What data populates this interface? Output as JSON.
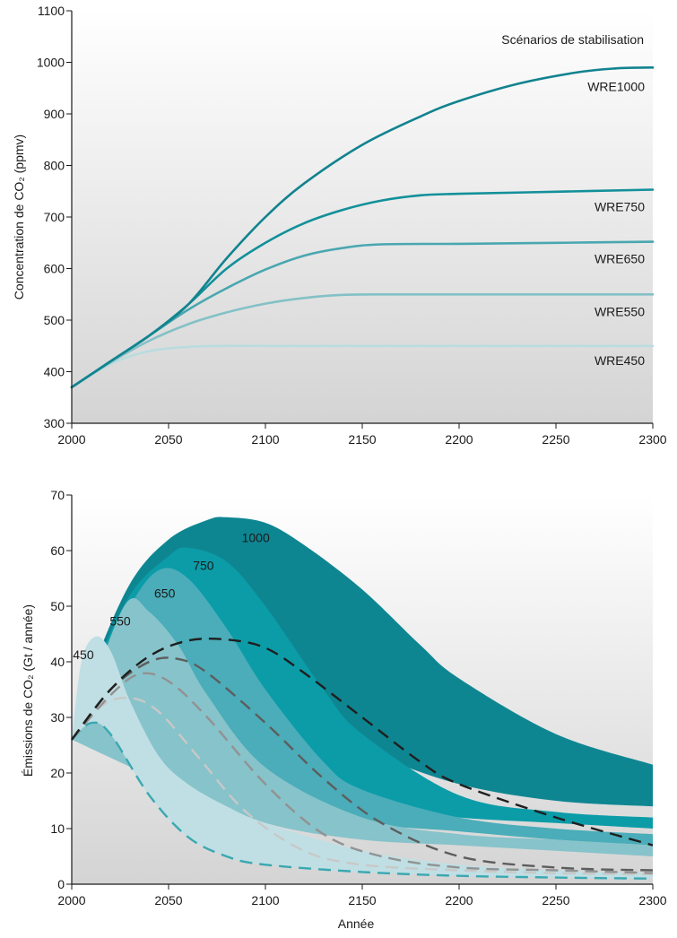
{
  "chart_data": [
    {
      "type": "line",
      "ylabel": "Concentration de CO₂ (ppmv)",
      "xlabel": "",
      "legend_title": "Scénarios de stabilisation",
      "xlim": [
        2000,
        2300
      ],
      "ylim": [
        300,
        1100
      ],
      "x_ticks": [
        "2000",
        "2050",
        "2100",
        "2150",
        "2200",
        "2250",
        "2300"
      ],
      "y_ticks": [
        "300",
        "400",
        "500",
        "600",
        "700",
        "800",
        "900",
        "1000",
        "1100"
      ],
      "colors": {
        "WRE1000": "#12838f",
        "WRE750": "#12909a",
        "WRE650": "#49a7b0",
        "WRE550": "#83c1c6",
        "WRE450": "#b9dcdf"
      },
      "series": [
        {
          "name": "WRE1000",
          "x": [
            2000,
            2020,
            2040,
            2060,
            2080,
            2100,
            2120,
            2150,
            2180,
            2200,
            2230,
            2260,
            2280,
            2300
          ],
          "y": [
            370,
            420,
            470,
            530,
            620,
            700,
            765,
            840,
            895,
            925,
            958,
            980,
            988,
            990
          ]
        },
        {
          "name": "WRE750",
          "x": [
            2000,
            2020,
            2040,
            2060,
            2080,
            2100,
            2120,
            2140,
            2160,
            2180,
            2200,
            2250,
            2300
          ],
          "y": [
            370,
            420,
            470,
            530,
            600,
            650,
            688,
            714,
            732,
            742,
            745,
            749,
            753
          ]
        },
        {
          "name": "WRE650",
          "x": [
            2000,
            2020,
            2040,
            2060,
            2080,
            2100,
            2120,
            2140,
            2160,
            2200,
            2250,
            2300
          ],
          "y": [
            370,
            420,
            470,
            520,
            562,
            598,
            625,
            640,
            647,
            648,
            650,
            652
          ]
        },
        {
          "name": "WRE550",
          "x": [
            2000,
            2020,
            2040,
            2060,
            2080,
            2100,
            2120,
            2140,
            2160,
            2200,
            2250,
            2300
          ],
          "y": [
            370,
            418,
            460,
            492,
            515,
            532,
            543,
            549,
            550,
            550,
            550,
            550
          ]
        },
        {
          "name": "WRE450",
          "x": [
            2000,
            2020,
            2040,
            2060,
            2080,
            2100,
            2150,
            2200,
            2250,
            2300
          ],
          "y": [
            370,
            415,
            440,
            448,
            450,
            450,
            450,
            450,
            450,
            450
          ]
        }
      ]
    },
    {
      "type": "area",
      "ylabel": "Émissions de CO₂ (Gt / année)",
      "xlabel": "Année",
      "xlim": [
        2000,
        2300
      ],
      "ylim": [
        0,
        70
      ],
      "x_ticks": [
        "2000",
        "2050",
        "2100",
        "2150",
        "2200",
        "2250",
        "2300"
      ],
      "y_ticks": [
        "0",
        "10",
        "20",
        "30",
        "40",
        "50",
        "60",
        "70"
      ],
      "bands": [
        {
          "name": "1000",
          "color": "#0e8692",
          "upper": {
            "x": [
              2000,
              2010,
              2030,
              2050,
              2070,
              2080,
              2100,
              2120,
              2150,
              2180,
              2200,
              2250,
              2300
            ],
            "y": [
              26,
              38,
              54,
              62,
              65.5,
              66,
              65,
              61,
              53,
              43,
              37,
              27,
              21.5
            ]
          },
          "lower": {
            "x": [
              2000,
              2100,
              2150,
              2200,
              2250,
              2300
            ],
            "y": [
              26,
              30,
              24,
              18,
              15,
              14
            ]
          }
        },
        {
          "name": "750",
          "color": "#0b9ca8",
          "upper": {
            "x": [
              2000,
              2010,
              2030,
              2050,
              2060,
              2080,
              2100,
              2130,
              2150,
              2200,
              2250,
              2300
            ],
            "y": [
              26,
              37,
              52,
              59,
              60.5,
              58,
              50,
              35,
              27,
              16,
              13,
              12
            ]
          },
          "lower": {
            "x": [
              2000,
              2050,
              2100,
              2150,
              2200,
              2250,
              2300
            ],
            "y": [
              26,
              25,
              18,
              14,
              12,
              11,
              10
            ]
          }
        },
        {
          "name": "650",
          "color": "#4aadb9",
          "upper": {
            "x": [
              2000,
              2010,
              2030,
              2045,
              2060,
              2080,
              2100,
              2130,
              2150,
              2200,
              2250,
              2300
            ],
            "y": [
              26,
              36,
              50,
              56.5,
              55,
              46,
              35,
              22,
              17,
              12,
              10,
              9
            ]
          },
          "lower": {
            "x": [
              2000,
              2050,
              2100,
              2150,
              2200,
              2250,
              2300
            ],
            "y": [
              26,
              22,
              15,
              11,
              9.5,
              8,
              7
            ]
          }
        },
        {
          "name": "550",
          "color": "#87c3ca",
          "upper": {
            "x": [
              2000,
              2010,
              2028,
              2040,
              2055,
              2070,
              2100,
              2150,
              2200,
              2250,
              2300
            ],
            "y": [
              26,
              35,
              50.5,
              49,
              43,
              34,
              21,
              12,
              9,
              8,
              7
            ]
          },
          "lower": {
            "x": [
              2000,
              2050,
              2100,
              2150,
              2200,
              2250,
              2300
            ],
            "y": [
              26,
              18,
              11,
              8,
              7,
              6,
              5
            ]
          }
        },
        {
          "name": "450",
          "color": "#c0dfe4",
          "upper": {
            "x": [
              2000,
              2005,
              2012,
              2020,
              2030,
              2045,
              2060,
              2080,
              2100,
              2150,
              2200,
              2250,
              2300
            ],
            "y": [
              26,
              40,
              44.5,
              42,
              33,
              23,
              18,
              14,
              11,
              6,
              3.5,
              2.5,
              2
            ]
          },
          "lower": {
            "x": [
              2000,
              2010,
              2020,
              2040,
              2060,
              2080,
              2100,
              2150,
              2200,
              2250,
              2300
            ],
            "y": [
              26,
              29,
              27,
              16,
              8.5,
              5,
              3.5,
              2.2,
              1.5,
              1.2,
              1
            ]
          }
        }
      ],
      "dashed_series": [
        {
          "color": "#1f1f1f",
          "x": [
            2000,
            2020,
            2040,
            2060,
            2080,
            2100,
            2120,
            2150,
            2180,
            2200,
            2250,
            2300
          ],
          "y": [
            26,
            35,
            41,
            43.8,
            44,
            42.5,
            38,
            30,
            22,
            18,
            12,
            7
          ]
        },
        {
          "color": "#5d5d5d",
          "x": [
            2000,
            2020,
            2040,
            2055,
            2070,
            2100,
            2130,
            2160,
            2200,
            2250,
            2300
          ],
          "y": [
            26,
            35,
            40,
            40.5,
            38,
            29,
            19,
            11,
            5,
            3,
            2.5
          ]
        },
        {
          "color": "#929292",
          "x": [
            2000,
            2020,
            2035,
            2050,
            2070,
            2100,
            2130,
            2160,
            2200,
            2250,
            2300
          ],
          "y": [
            26,
            34,
            37.8,
            36.5,
            30,
            18,
            9,
            5,
            3,
            2.5,
            2
          ]
        },
        {
          "color": "#c8c8c8",
          "x": [
            2000,
            2015,
            2030,
            2045,
            2065,
            2090,
            2120,
            2150,
            2200,
            2250,
            2300
          ],
          "y": [
            26,
            32,
            33.5,
            31,
            23,
            13,
            6,
            3.5,
            2.5,
            2,
            1.8
          ]
        },
        {
          "color": "#3aa8b1",
          "x": [
            2000,
            2010,
            2020,
            2040,
            2060,
            2080,
            2100,
            2150,
            2200,
            2250,
            2300
          ],
          "y": [
            26,
            29,
            27,
            16,
            8.5,
            5,
            3.5,
            2.2,
            1.5,
            1.2,
            1
          ]
        }
      ]
    }
  ]
}
